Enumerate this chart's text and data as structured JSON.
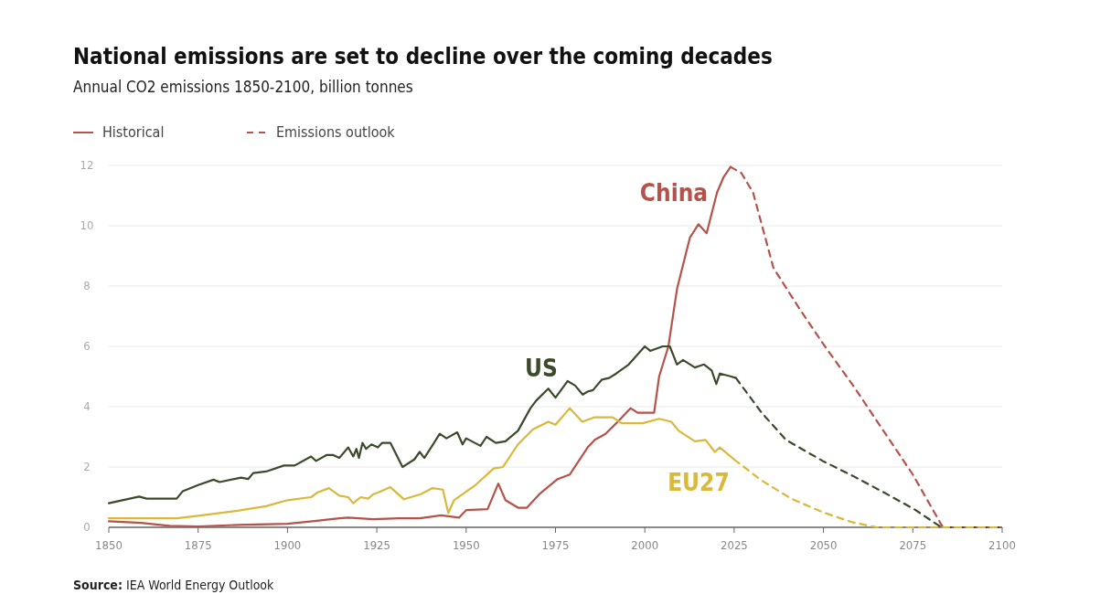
{
  "chart_data": {
    "type": "line",
    "title": "National emissions are set to decline over the coming decades",
    "subtitle": "Annual CO2 emissions 1850-2100, billion tonnes",
    "annotations": [
      "Historical",
      "Emissions outlook",
      "Source: IEA World Energy Outlook"
    ],
    "xlim": [
      1850,
      2100
    ],
    "xticks": [
      1850,
      1875,
      1900,
      1925,
      1950,
      1975,
      2000,
      2025,
      2050,
      2075,
      2100
    ],
    "ylim": [
      0,
      12
    ],
    "yticks": [
      0,
      2,
      4,
      6,
      8,
      10,
      12
    ],
    "grid": "y",
    "marker": "none",
    "series": [
      {
        "name": "China",
        "color": "#b5524a",
        "line_style": "solid",
        "x": [
          1850,
          1859,
          1867,
          1875,
          1886,
          1900,
          1907,
          1914.5,
          1917,
          1924,
          1931,
          1937,
          1943,
          1948,
          1950,
          1956,
          1959,
          1961,
          1964.5,
          1967,
          1970.5,
          1975.6,
          1979,
          1984,
          1986,
          1989,
          1992,
          1996,
          1998,
          2002.6,
          2004,
          2006.6,
          2009,
          2012.6,
          2015,
          2017.3,
          2020.2,
          2022,
          2024
        ],
        "values": [
          0.2,
          0.15,
          0.05,
          0.03,
          0.08,
          0.12,
          0.2,
          0.3,
          0.32,
          0.27,
          0.3,
          0.3,
          0.4,
          0.32,
          0.57,
          0.6,
          1.45,
          0.9,
          0.65,
          0.65,
          1.1,
          1.6,
          1.75,
          2.65,
          2.9,
          3.1,
          3.45,
          3.95,
          3.8,
          3.8,
          5.0,
          6.0,
          7.9,
          9.6,
          10.05,
          9.75,
          11.1,
          11.6,
          11.95
        ]
      },
      {
        "color": "#b5524a",
        "line_style": "dashed",
        "x": [
          2024,
          2027,
          2030.3,
          2036,
          2043,
          2049.8,
          2058.3,
          2066.5,
          2075,
          2083.4,
          2090,
          2100
        ],
        "values": [
          11.95,
          11.75,
          11.1,
          8.6,
          7.3,
          6.1,
          4.7,
          3.25,
          1.75,
          0,
          0,
          0
        ]
      },
      {
        "name": "US",
        "color": "#3b4a2a",
        "line_style": "solid",
        "x": [
          1850,
          1858.5,
          1860.6,
          1869,
          1870.7,
          1875,
          1879.3,
          1881,
          1887,
          1889,
          1890.4,
          1894,
          1899,
          1902,
          1906.6,
          1908,
          1911,
          1912.7,
          1914.5,
          1917,
          1918.4,
          1919.3,
          1920,
          1921,
          1922,
          1923.5,
          1925.3,
          1926.5,
          1928.8,
          1932.2,
          1935.5,
          1937,
          1938.3,
          1941,
          1942.6,
          1944.5,
          1947.5,
          1949,
          1950,
          1954,
          1955.7,
          1958.3,
          1961,
          1964.5,
          1968,
          1969.6,
          1973,
          1975,
          1978.4,
          1980.5,
          1982.6,
          1984,
          1985.5,
          1988,
          1990,
          1992,
          1995.5,
          2000,
          2001.5,
          2005,
          2007,
          2009,
          2010.7,
          2014,
          2016.6,
          2018.7,
          2020,
          2021,
          2024.2,
          2025.5
        ],
        "values": [
          0.8,
          1.02,
          0.95,
          0.95,
          1.2,
          1.4,
          1.58,
          1.5,
          1.65,
          1.6,
          1.8,
          1.85,
          2.05,
          2.05,
          2.35,
          2.2,
          2.4,
          2.4,
          2.3,
          2.65,
          2.35,
          2.6,
          2.3,
          2.8,
          2.6,
          2.75,
          2.65,
          2.8,
          2.8,
          2.0,
          2.25,
          2.5,
          2.3,
          2.8,
          3.1,
          2.95,
          3.15,
          2.75,
          2.95,
          2.7,
          3.0,
          2.8,
          2.85,
          3.2,
          3.95,
          4.2,
          4.6,
          4.3,
          4.85,
          4.7,
          4.4,
          4.5,
          4.55,
          4.9,
          4.95,
          5.1,
          5.4,
          6.0,
          5.85,
          6.0,
          6.0,
          5.4,
          5.55,
          5.3,
          5.4,
          5.2,
          4.75,
          5.1,
          5.0,
          4.95
        ]
      },
      {
        "color": "#3b4a2a",
        "line_style": "dashed",
        "x": [
          2025.5,
          2032.7,
          2039.5,
          2049.8,
          2058.3,
          2067,
          2075.4,
          2083,
          2090,
          2100
        ],
        "values": [
          4.95,
          3.8,
          2.9,
          2.2,
          1.7,
          1.15,
          0.6,
          0,
          0,
          0
        ]
      },
      {
        "name": "EU27",
        "color": "#d9b83a",
        "line_style": "solid",
        "x": [
          1850,
          1869,
          1875,
          1886,
          1894,
          1900,
          1906.6,
          1908.3,
          1911.6,
          1914.5,
          1917,
          1918.4,
          1920.5,
          1922.6,
          1924,
          1925.3,
          1928.8,
          1932.6,
          1937.3,
          1940.6,
          1943.5,
          1945,
          1946.6,
          1952.6,
          1957.7,
          1960.3,
          1964.5,
          1968.7,
          1973,
          1975,
          1979,
          1982.5,
          1986,
          1991,
          1993.5,
          1999.4,
          2004,
          2007.4,
          2009.5,
          2014,
          2017,
          2019.6,
          2021,
          2025
        ],
        "values": [
          0.3,
          0.3,
          0.38,
          0.55,
          0.7,
          0.9,
          1.0,
          1.15,
          1.3,
          1.05,
          1.0,
          0.8,
          1.0,
          0.95,
          1.1,
          1.15,
          1.33,
          0.93,
          1.1,
          1.3,
          1.25,
          0.47,
          0.9,
          1.4,
          1.95,
          2.0,
          2.75,
          3.25,
          3.5,
          3.4,
          3.95,
          3.5,
          3.65,
          3.65,
          3.45,
          3.45,
          3.6,
          3.5,
          3.2,
          2.85,
          2.9,
          2.5,
          2.65,
          2.25
        ]
      },
      {
        "color": "#d9b83a",
        "line_style": "dashed",
        "x": [
          2025,
          2032.7,
          2041,
          2049.8,
          2058,
          2065,
          2080,
          2100
        ],
        "values": [
          2.25,
          1.55,
          0.95,
          0.5,
          0.17,
          0,
          0,
          0
        ]
      }
    ]
  }
}
